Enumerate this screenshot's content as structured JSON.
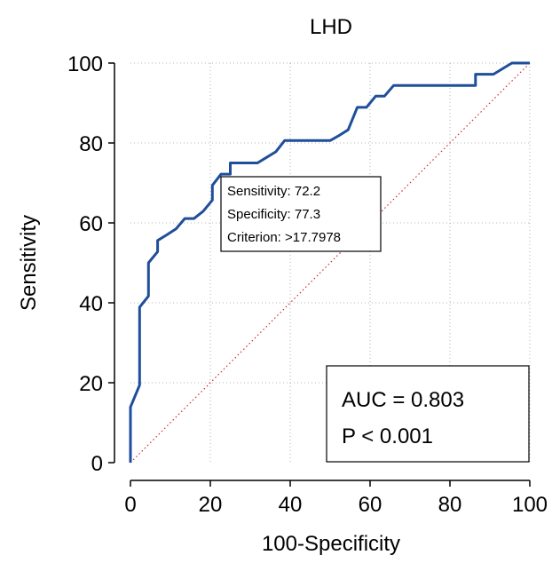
{
  "chart_data": {
    "type": "line",
    "title": "LHD",
    "xlabel": "100-Specificity",
    "ylabel": "Sensitivity",
    "xlim": [
      0,
      100
    ],
    "ylim": [
      0,
      100
    ],
    "x_ticks": [
      "0",
      "20",
      "40",
      "60",
      "80",
      "100"
    ],
    "y_ticks": [
      "0",
      "20",
      "40",
      "60",
      "80",
      "100"
    ],
    "grid": true,
    "series": [
      {
        "color": "#1f4e9a",
        "x": [
          0,
          0,
          0,
          0,
          2.3,
          2.3,
          2.3,
          4.5,
          4.5,
          4.5,
          6.8,
          6.8,
          9.1,
          11.4,
          13.6,
          15.9,
          18.2,
          20.5,
          20.5,
          22.7,
          25.0,
          25.0,
          27.3,
          29.5,
          31.8,
          34.1,
          36.4,
          38.6,
          40.9,
          45.5,
          50.0,
          52.3,
          54.5,
          56.8,
          59.1,
          61.4,
          63.6,
          65.9,
          70.5,
          75.0,
          79.5,
          84.1,
          86.4,
          86.4,
          90.9,
          95.5,
          100
        ],
        "y": [
          0,
          5.6,
          13.9,
          13.9,
          19.4,
          33.3,
          38.9,
          41.7,
          47.2,
          50.0,
          52.8,
          55.6,
          57.0,
          58.5,
          61.1,
          61.1,
          62.9,
          65.7,
          69.4,
          72.2,
          72.2,
          75.0,
          75.0,
          75.0,
          75.0,
          76.4,
          77.8,
          80.6,
          80.6,
          80.6,
          80.6,
          81.9,
          83.3,
          88.9,
          88.9,
          91.7,
          91.7,
          94.4,
          94.4,
          94.4,
          94.4,
          94.4,
          94.4,
          97.2,
          97.2,
          100,
          100
        ]
      }
    ],
    "reference_line": {
      "color": "#d22b2b",
      "x": [
        0,
        100
      ],
      "y": [
        0,
        100
      ]
    },
    "criterion_box": {
      "lines": [
        "Sensitivity: 72.2",
        "Specificity: 77.3",
        "Criterion: >17.7978"
      ],
      "point_x": 22.7,
      "point_y": 72.2
    },
    "stats_box": {
      "lines": [
        "AUC = 0.803",
        "P < 0.001"
      ]
    },
    "axis_color": "#000000",
    "grid_color": "#a0a0a0"
  }
}
